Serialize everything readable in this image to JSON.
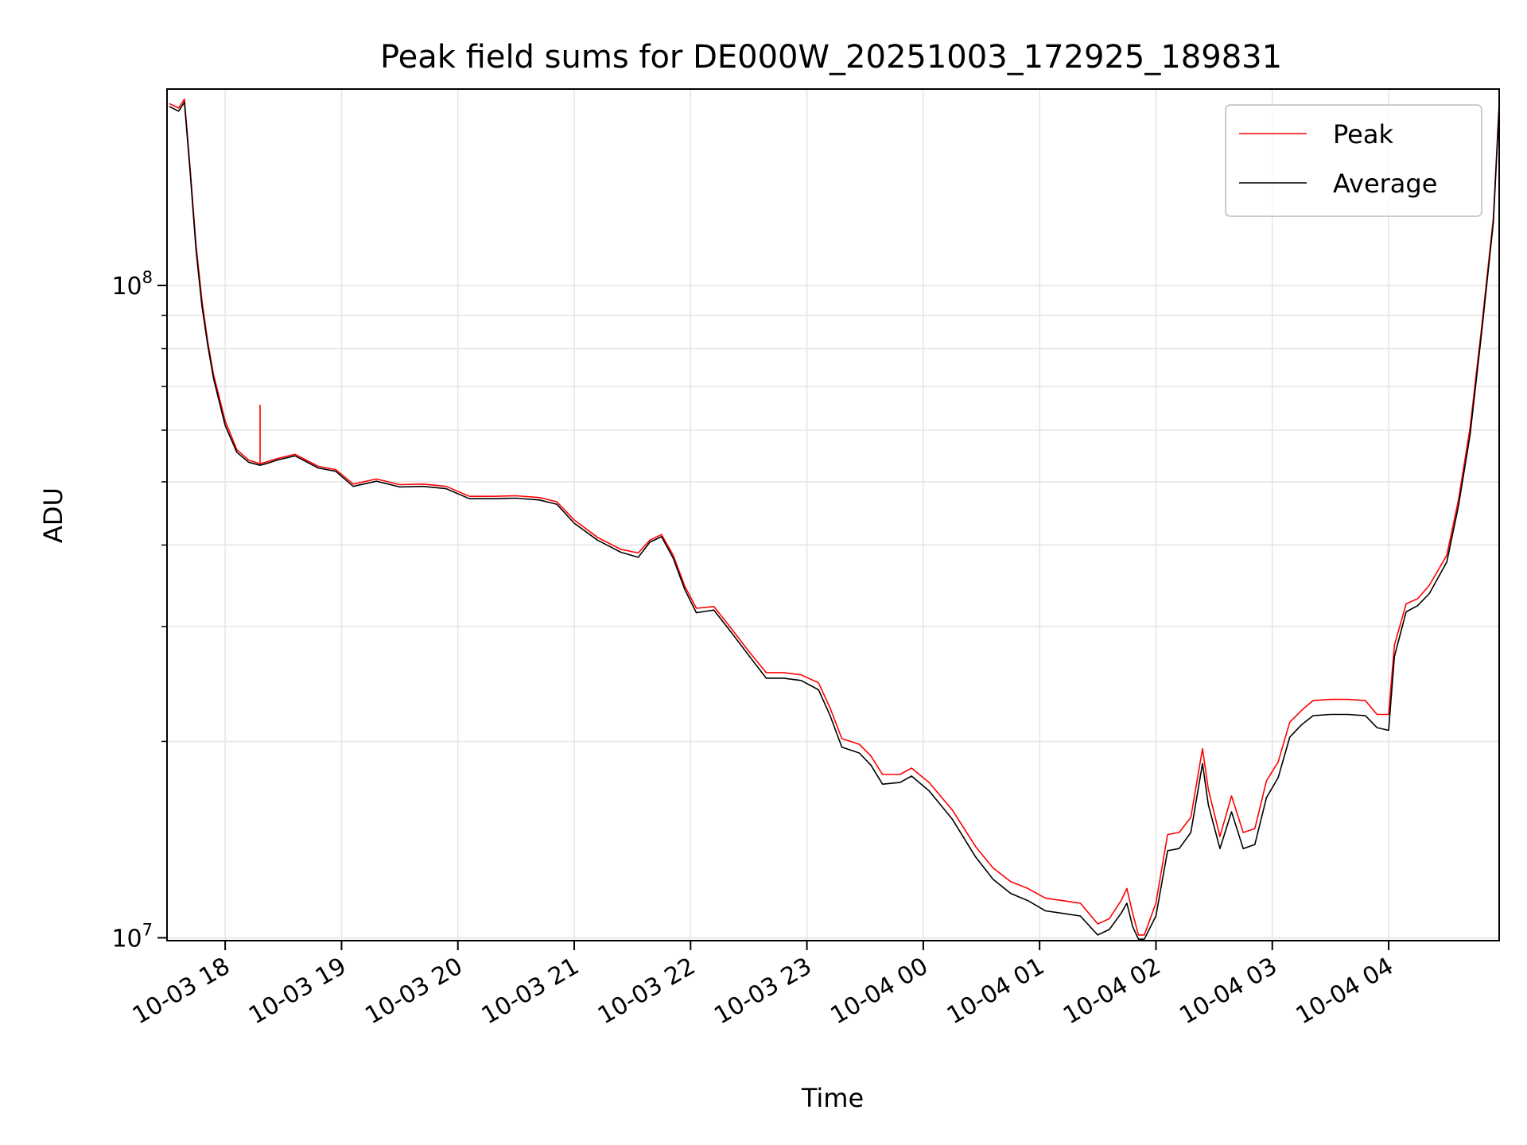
{
  "chart_data": {
    "type": "line",
    "title": "Peak field sums for DE000W_20251003_172925_189831",
    "xlabel": "Time",
    "ylabel": "ADU",
    "yscale": "log",
    "ylim": [
      9900000,
      200000000
    ],
    "xlim_hours": [
      17.5,
      28.95
    ],
    "x_unit": "hours since 2025-10-03 00:00",
    "grid": true,
    "legend_position": "top-right",
    "x_ticks": [
      {
        "hour": 18,
        "label": "10-03 18"
      },
      {
        "hour": 19,
        "label": "10-03 19"
      },
      {
        "hour": 20,
        "label": "10-03 20"
      },
      {
        "hour": 21,
        "label": "10-03 21"
      },
      {
        "hour": 22,
        "label": "10-03 22"
      },
      {
        "hour": 23,
        "label": "10-03 23"
      },
      {
        "hour": 24,
        "label": "10-04 00"
      },
      {
        "hour": 25,
        "label": "10-04 01"
      },
      {
        "hour": 26,
        "label": "10-04 02"
      },
      {
        "hour": 27,
        "label": "10-04 03"
      },
      {
        "hour": 28,
        "label": "10-04 04"
      }
    ],
    "y_major_ticks": [
      {
        "value": 10000000,
        "base": "10",
        "exp": "7"
      },
      {
        "value": 100000000,
        "base": "10",
        "exp": "8"
      }
    ],
    "y_minor_ticks": [
      20000000,
      30000000,
      40000000,
      50000000,
      60000000,
      70000000,
      80000000,
      90000000
    ],
    "series": [
      {
        "name": "Peak",
        "color": "#ff0000",
        "x": [
          17.52,
          17.6,
          17.65,
          17.7,
          17.75,
          17.8,
          17.85,
          17.9,
          18.0,
          18.1,
          18.2,
          18.3,
          18.3,
          18.3,
          18.3,
          18.35,
          18.45,
          18.6,
          18.8,
          18.95,
          19.1,
          19.3,
          19.5,
          19.7,
          19.9,
          20.1,
          20.3,
          20.5,
          20.7,
          20.85,
          21.0,
          21.2,
          21.4,
          21.55,
          21.65,
          21.75,
          21.85,
          21.95,
          22.05,
          22.2,
          22.35,
          22.5,
          22.65,
          22.8,
          22.95,
          23.1,
          23.2,
          23.3,
          23.45,
          23.55,
          23.65,
          23.8,
          23.9,
          24.05,
          24.25,
          24.45,
          24.6,
          24.75,
          24.9,
          25.05,
          25.2,
          25.35,
          25.5,
          25.6,
          25.7,
          25.75,
          25.8,
          25.85,
          25.9,
          26.0,
          26.1,
          26.2,
          26.3,
          26.4,
          26.45,
          26.55,
          26.65,
          26.75,
          26.85,
          26.95,
          27.05,
          27.15,
          27.25,
          27.35,
          27.5,
          27.65,
          27.8,
          27.9,
          28.0,
          28.05,
          28.15,
          28.25,
          28.35,
          28.5,
          28.6,
          28.7,
          28.8,
          28.9,
          28.95
        ],
        "y": [
          190000000,
          187000000,
          193000000,
          150000000,
          115000000,
          95000000,
          82000000,
          73000000,
          62000000,
          56000000,
          54000000,
          53300000,
          65500000,
          53500000,
          53300000,
          53600000,
          54300000,
          55100000,
          52800000,
          52200000,
          49600000,
          50500000,
          49500000,
          49600000,
          49200000,
          47500000,
          47500000,
          47600000,
          47300000,
          46600000,
          43700000,
          41100000,
          39400000,
          38900000,
          40700000,
          41500000,
          38600000,
          34600000,
          32000000,
          32200000,
          29800000,
          27500000,
          25500000,
          25500000,
          25300000,
          24600000,
          22500000,
          20200000,
          19800000,
          19000000,
          17800000,
          17800000,
          18200000,
          17300000,
          15700000,
          13800000,
          12800000,
          12200000,
          11900000,
          11500000,
          11400000,
          11300000,
          10500000,
          10700000,
          11400000,
          11900000,
          10900000,
          10100000,
          10100000,
          11300000,
          14400000,
          14500000,
          15300000,
          19500000,
          16900000,
          14300000,
          16500000,
          14500000,
          14700000,
          17400000,
          18600000,
          21400000,
          22300000,
          23100000,
          23200000,
          23200000,
          23100000,
          22000000,
          22000000,
          28100000,
          32500000,
          33100000,
          34700000,
          38600000,
          46900000,
          60500000,
          86600000,
          127000000,
          190000000
        ]
      },
      {
        "name": "Average",
        "color": "#000000",
        "x": [
          17.52,
          17.6,
          17.65,
          17.7,
          17.75,
          17.8,
          17.85,
          17.9,
          18.0,
          18.1,
          18.2,
          18.3,
          18.35,
          18.45,
          18.6,
          18.8,
          18.95,
          19.1,
          19.3,
          19.5,
          19.7,
          19.9,
          20.1,
          20.3,
          20.5,
          20.7,
          20.85,
          21.0,
          21.2,
          21.4,
          21.55,
          21.65,
          21.75,
          21.85,
          21.95,
          22.05,
          22.2,
          22.35,
          22.5,
          22.65,
          22.8,
          22.95,
          23.1,
          23.2,
          23.3,
          23.45,
          23.55,
          23.65,
          23.8,
          23.9,
          24.05,
          24.25,
          24.45,
          24.6,
          24.75,
          24.9,
          25.05,
          25.2,
          25.35,
          25.5,
          25.6,
          25.7,
          25.75,
          25.8,
          25.85,
          25.9,
          26.0,
          26.1,
          26.2,
          26.3,
          26.4,
          26.45,
          26.55,
          26.65,
          26.75,
          26.85,
          26.95,
          27.05,
          27.15,
          27.25,
          27.35,
          27.5,
          27.65,
          27.8,
          27.9,
          28.0,
          28.05,
          28.15,
          28.25,
          28.35,
          28.5,
          28.6,
          28.7,
          28.8,
          28.9,
          28.95
        ],
        "y": [
          188000000,
          185000000,
          191000000,
          148000000,
          113000000,
          93000000,
          81000000,
          72000000,
          61000000,
          55500000,
          53600000,
          53000000,
          53300000,
          54000000,
          54800000,
          52500000,
          51900000,
          49200000,
          50100000,
          49100000,
          49200000,
          48800000,
          47100000,
          47100000,
          47200000,
          46900000,
          46200000,
          43200000,
          40700000,
          39000000,
          38300000,
          40400000,
          41200000,
          38200000,
          34200000,
          31500000,
          31800000,
          29400000,
          27100000,
          25000000,
          25000000,
          24800000,
          24000000,
          21900000,
          19600000,
          19200000,
          18400000,
          17200000,
          17300000,
          17700000,
          16800000,
          15200000,
          13300000,
          12300000,
          11700000,
          11400000,
          11000000,
          10900000,
          10800000,
          10100000,
          10300000,
          10900000,
          11300000,
          10400000,
          9950000,
          9950000,
          10800000,
          13600000,
          13700000,
          14500000,
          18500000,
          16000000,
          13700000,
          15600000,
          13700000,
          13900000,
          16400000,
          17600000,
          20300000,
          21200000,
          21900000,
          22000000,
          22000000,
          21900000,
          21000000,
          20800000,
          27000000,
          31600000,
          32300000,
          33700000,
          37700000,
          45900000,
          59000000,
          85000000,
          125000000,
          188000000
        ]
      }
    ]
  }
}
